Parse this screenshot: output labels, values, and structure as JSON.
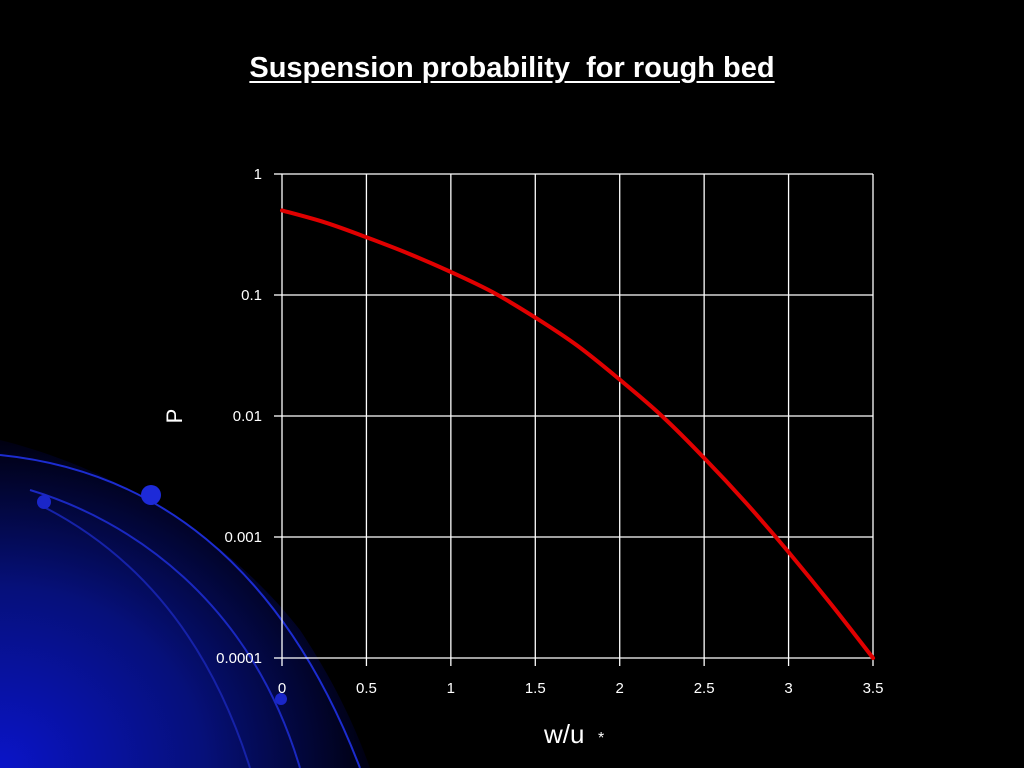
{
  "chart_data": {
    "type": "line",
    "title": "Suspension probability  for rough bed",
    "xlabel_main": "w/u",
    "xlabel_sub": "*",
    "ylabel": "P",
    "xlim": [
      0,
      3.5
    ],
    "ylim": [
      0.0001,
      1
    ],
    "yscale": "log",
    "grid": true,
    "x_ticks": [
      "0",
      "0.5",
      "1",
      "1.5",
      "2",
      "2.5",
      "3",
      "3.5"
    ],
    "y_ticks": [
      "1",
      "0.1",
      "0.01",
      "0.001",
      "0.0001"
    ],
    "series": [
      {
        "color": "#e00000",
        "x": [
          0,
          0.25,
          0.5,
          0.75,
          1.0,
          1.25,
          1.5,
          1.75,
          2.0,
          2.25,
          2.5,
          2.75,
          3.0,
          3.25,
          3.5
        ],
        "y": [
          0.5,
          0.4,
          0.3,
          0.22,
          0.155,
          0.105,
          0.065,
          0.038,
          0.02,
          0.01,
          0.0045,
          0.0019,
          0.00075,
          0.00028,
          0.0001
        ]
      }
    ]
  },
  "colors": {
    "background": "#000000",
    "grid": "#ffffff",
    "line": "#e00000",
    "decoration": "#0a14b4"
  }
}
